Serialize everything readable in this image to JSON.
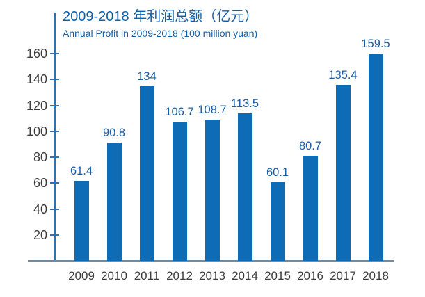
{
  "chart_data": {
    "type": "bar",
    "title": "2009-2018 年利润总额（亿元）",
    "subtitle": "Annual Profit in 2009-2018 (100 million yuan)",
    "categories": [
      "2009",
      "2010",
      "2011",
      "2012",
      "2013",
      "2014",
      "2015",
      "2016",
      "2017",
      "2018"
    ],
    "values": [
      61.4,
      90.8,
      134,
      106.7,
      108.7,
      113.5,
      60.1,
      80.7,
      135.4,
      159.5
    ],
    "value_labels": [
      "61.4",
      "90.8",
      "134",
      "106.7",
      "108.7",
      "113.5",
      "60.1",
      "80.7",
      "135.4",
      "159.5"
    ],
    "xlabel": "",
    "ylabel": "",
    "ylim": [
      0,
      170
    ],
    "yticks": [
      20,
      40,
      60,
      80,
      100,
      120,
      140,
      160
    ],
    "grid": false,
    "legend": "none",
    "colors": {
      "bar": "#0e6cb6",
      "axis": "#2c73b0",
      "baseline": "#6b8ca6",
      "title": "#135fa9",
      "subtitle": "#135fa9",
      "value_label": "#1a5da7",
      "tick_label": "#3d3d3d",
      "background": "#ffffff"
    }
  }
}
